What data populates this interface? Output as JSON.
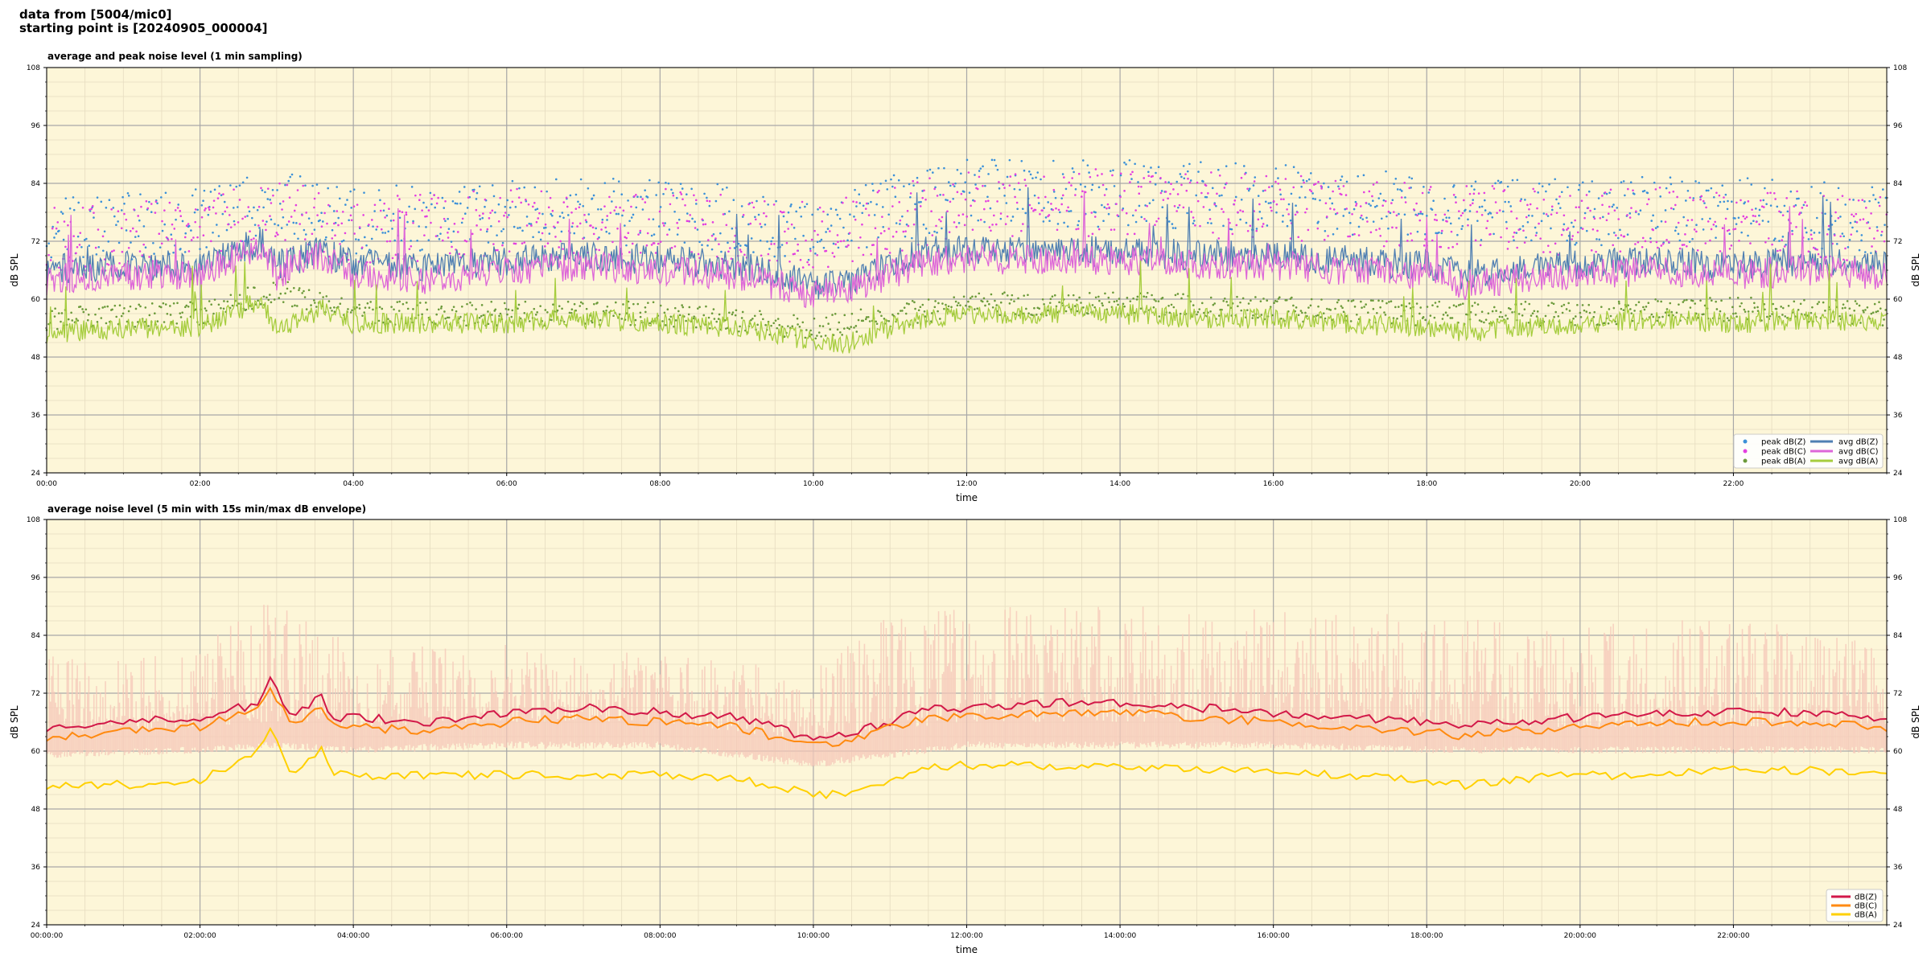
{
  "header": {
    "line1": "data from [5004/mic0]",
    "line2": "starting point is [20240905_000004]"
  },
  "colors": {
    "plot_bg": "#fdf6d8",
    "dbz": "#4f7fb2",
    "dbc": "#dd66d8",
    "dba": "#a6cd3e",
    "peak_dbz": "#3b90d8",
    "peak_dbc": "#e33fe0",
    "peak_dba": "#6b9a3a",
    "dbz2": "#d21848",
    "dbc2": "#ff8a10",
    "dba2": "#ffd000",
    "envelope": "#f6c7b8"
  },
  "chart_data": [
    {
      "type": "line",
      "title": "average and peak noise level (1 min sampling)",
      "xlabel": "time",
      "ylabel": "dB SPL",
      "ylim": [
        24,
        108
      ],
      "yticks": [
        "24",
        "36",
        "48",
        "60",
        "72",
        "84",
        "96",
        "108"
      ],
      "xlim_hours": [
        0,
        24
      ],
      "xticks": [
        "00:00",
        "02:00",
        "04:00",
        "06:00",
        "08:00",
        "10:00",
        "12:00",
        "14:00",
        "16:00",
        "18:00",
        "20:00",
        "22:00"
      ],
      "grid": true,
      "legend_placement": "bottom-right",
      "legend": [
        {
          "label": "peak dB(Z)",
          "kind": "dot",
          "color_key": "peak_dbz"
        },
        {
          "label": "peak dB(C)",
          "kind": "dot",
          "color_key": "peak_dbc"
        },
        {
          "label": "peak dB(A)",
          "kind": "dot",
          "color_key": "peak_dba"
        },
        {
          "label": "avg dB(Z)",
          "kind": "line",
          "color_key": "dbz"
        },
        {
          "label": "avg dB(C)",
          "kind": "line",
          "color_key": "dbc"
        },
        {
          "label": "avg dB(A)",
          "kind": "line",
          "color_key": "dba"
        }
      ],
      "series": [
        {
          "name": "avg dB(Z)",
          "x": [
            0,
            1,
            2,
            2.8,
            3,
            3.6,
            4,
            5,
            6,
            7,
            8,
            9,
            9.5,
            10,
            10.5,
            11,
            11.5,
            12,
            13,
            14,
            15,
            16,
            17,
            18,
            18.5,
            19,
            20,
            21,
            22,
            23,
            24
          ],
          "y": [
            66,
            67,
            67,
            72,
            67,
            70,
            67,
            67,
            68,
            69,
            68,
            67,
            65,
            63,
            63,
            67,
            70,
            70,
            70,
            70,
            69,
            69,
            68,
            67,
            65,
            66,
            67,
            68,
            67,
            68,
            67
          ]
        },
        {
          "name": "avg dB(C)",
          "x": [
            0,
            1,
            2,
            2.8,
            3,
            3.6,
            4,
            5,
            6,
            7,
            8,
            9,
            9.5,
            10,
            10.5,
            11,
            11.5,
            12,
            13,
            14,
            15,
            16,
            17,
            18,
            18.5,
            19,
            20,
            21,
            22,
            23,
            24
          ],
          "y": [
            64,
            65,
            65,
            71,
            65,
            69,
            65,
            64,
            66,
            67,
            66,
            65,
            63,
            61,
            62,
            65,
            68,
            68,
            68,
            68,
            67,
            67,
            66,
            65,
            63,
            64,
            65,
            66,
            65,
            66,
            65
          ]
        },
        {
          "name": "avg dB(A)",
          "x": [
            0,
            1,
            2,
            2.8,
            3,
            3.6,
            4,
            5,
            6,
            7,
            8,
            9,
            9.5,
            10,
            10.5,
            11,
            11.5,
            12,
            13,
            14,
            15,
            16,
            17,
            18,
            18.5,
            19,
            20,
            21,
            22,
            23,
            24
          ],
          "y": [
            53,
            54,
            54,
            60,
            54,
            58,
            55,
            55,
            55,
            56,
            55,
            54,
            53,
            51,
            51,
            54,
            56,
            57,
            57,
            57,
            56,
            56,
            55,
            54,
            53,
            54,
            55,
            56,
            55,
            56,
            55
          ]
        },
        {
          "name": "peak dB(Z)",
          "x": [
            0,
            2,
            3,
            4,
            6,
            8,
            10,
            12,
            14,
            16,
            18,
            20,
            22,
            24
          ],
          "y": [
            74,
            76,
            80,
            76,
            78,
            78,
            75,
            82,
            82,
            81,
            79,
            78,
            79,
            76
          ]
        },
        {
          "name": "peak dB(C)",
          "x": [
            0,
            2,
            3,
            4,
            6,
            8,
            10,
            12,
            14,
            16,
            18,
            20,
            22,
            24
          ],
          "y": [
            72,
            74,
            78,
            74,
            76,
            76,
            73,
            80,
            80,
            79,
            77,
            76,
            77,
            74
          ]
        },
        {
          "name": "peak dB(A)",
          "x": [
            0,
            2,
            3,
            4,
            6,
            8,
            10,
            12,
            14,
            16,
            18,
            20,
            22,
            24
          ],
          "y": [
            56,
            57,
            62,
            57,
            57,
            57,
            54,
            59,
            59,
            58,
            57,
            57,
            58,
            57
          ]
        }
      ]
    },
    {
      "type": "line",
      "title": "average noise level (5 min with 15s min/max dB envelope)",
      "xlabel": "time",
      "ylabel": "dB SPL",
      "ylim": [
        24,
        108
      ],
      "yticks": [
        "24",
        "36",
        "48",
        "60",
        "72",
        "84",
        "96",
        "108"
      ],
      "xlim_hours": [
        0,
        24
      ],
      "xticks": [
        "00:00:00",
        "02:00:00",
        "04:00:00",
        "06:00:00",
        "08:00:00",
        "10:00:00",
        "12:00:00",
        "14:00:00",
        "16:00:00",
        "18:00:00",
        "20:00:00",
        "22:00:00"
      ],
      "grid": true,
      "legend_placement": "bottom-right",
      "legend": [
        {
          "label": "dB(Z)",
          "kind": "line",
          "color_key": "dbz2"
        },
        {
          "label": "dB(C)",
          "kind": "line",
          "color_key": "dbc2"
        },
        {
          "label": "dB(A)",
          "kind": "line",
          "color_key": "dba2"
        }
      ],
      "series": [
        {
          "name": "dB(Z)",
          "x": [
            0,
            1,
            2,
            2.8,
            2.9,
            3.2,
            3.6,
            3.7,
            4,
            5,
            6,
            7,
            8,
            9,
            9.5,
            10,
            10.5,
            11,
            11.5,
            12,
            13,
            14,
            15,
            16,
            17,
            18,
            18.5,
            19,
            20,
            21,
            22,
            23,
            24
          ],
          "y": [
            65,
            66,
            67,
            70,
            76,
            67,
            72,
            67,
            67,
            66,
            68,
            69,
            68,
            67,
            65,
            62,
            64,
            66,
            69,
            69,
            70,
            70,
            69,
            68,
            67,
            66,
            65,
            66,
            67,
            68,
            68,
            68,
            67
          ]
        },
        {
          "name": "dB(C)",
          "x": [
            0,
            1,
            2,
            2.8,
            2.9,
            3.2,
            3.6,
            3.7,
            4,
            5,
            6,
            7,
            8,
            9,
            9.5,
            10,
            10.5,
            11,
            11.5,
            12,
            13,
            14,
            15,
            16,
            17,
            18,
            18.5,
            19,
            20,
            21,
            22,
            23,
            24
          ],
          "y": [
            63,
            64,
            65,
            69,
            74,
            65,
            70,
            65,
            65,
            64,
            66,
            67,
            66,
            65,
            63,
            61,
            62,
            65,
            67,
            67,
            68,
            68,
            67,
            66,
            65,
            64,
            63,
            64,
            65,
            66,
            66,
            66,
            65
          ]
        },
        {
          "name": "dB(A)",
          "x": [
            0,
            1,
            2,
            2.8,
            2.9,
            3.2,
            3.6,
            3.7,
            4,
            5,
            6,
            7,
            8,
            9,
            9.5,
            10,
            10.5,
            11,
            11.5,
            12,
            13,
            14,
            15,
            16,
            17,
            18,
            18.5,
            19,
            20,
            21,
            22,
            23,
            24
          ],
          "y": [
            53,
            53,
            54,
            60,
            66,
            54,
            61,
            55,
            55,
            55,
            55,
            55,
            55,
            54,
            53,
            51,
            51,
            54,
            57,
            57,
            57,
            57,
            56,
            56,
            55,
            54,
            53,
            54,
            55,
            55,
            56,
            56,
            55
          ]
        }
      ],
      "envelope_z": {
        "x": [
          0,
          2,
          2.9,
          4,
          6,
          8,
          10,
          11,
          12,
          14,
          16,
          18,
          20,
          22,
          24
        ],
        "min": [
          60,
          61,
          62,
          61,
          62,
          62,
          58,
          60,
          62,
          62,
          62,
          61,
          61,
          61,
          61
        ],
        "max": [
          80,
          82,
          92,
          82,
          82,
          80,
          78,
          88,
          90,
          90,
          90,
          88,
          86,
          88,
          82
        ]
      }
    }
  ]
}
